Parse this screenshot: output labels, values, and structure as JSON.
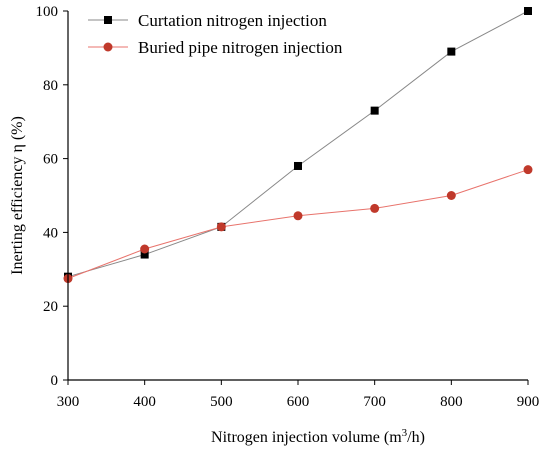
{
  "chart_data": {
    "type": "line",
    "x": [
      300,
      400,
      500,
      600,
      700,
      800,
      900
    ],
    "xlabel": "Nitrogen injection volume",
    "xlabel_unit": "m",
    "xlabel_sup": "3",
    "xlabel_unit_tail": "/h)",
    "xlabel_open": " (",
    "ylabel": "Inerting efficiency η (%)",
    "xlim": [
      300,
      900
    ],
    "ylim": [
      0,
      100
    ],
    "xticks": [
      300,
      400,
      500,
      600,
      700,
      800,
      900
    ],
    "yticks": [
      0,
      20,
      40,
      60,
      80,
      100
    ],
    "grid": false,
    "legend_position": "top-left",
    "series": [
      {
        "name": "Curtation nitrogen injection",
        "marker": "square",
        "color": "#000000",
        "line_color": "#888888",
        "values": [
          28,
          34,
          41.5,
          58,
          73,
          89,
          100
        ]
      },
      {
        "name": "Buried pipe nitrogen injection",
        "marker": "circle",
        "color": "#c0392b",
        "line_color": "#e8736c",
        "values": [
          27.5,
          35.5,
          41.5,
          44.5,
          46.5,
          50,
          57
        ]
      }
    ]
  }
}
